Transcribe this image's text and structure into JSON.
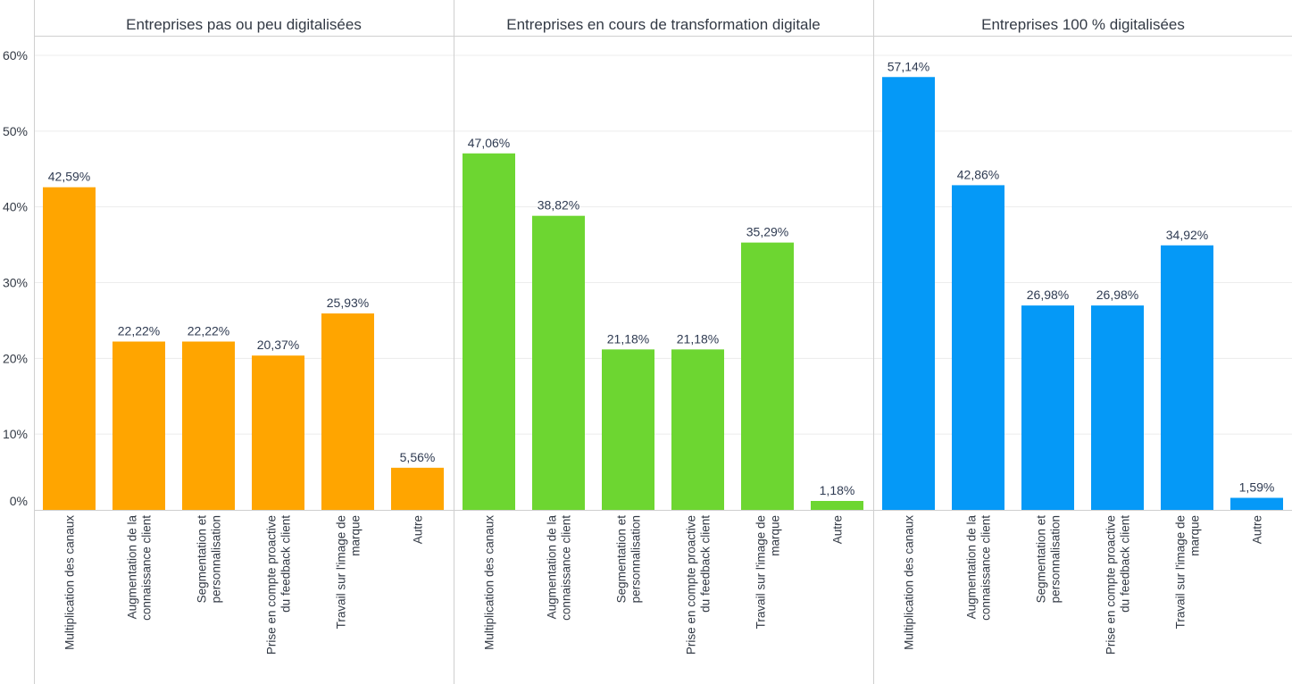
{
  "chart_data": {
    "type": "bar",
    "title": "",
    "xlabel": "",
    "ylabel": "",
    "ylim": [
      0,
      60
    ],
    "y_ticks": [
      "0%",
      "10%",
      "20%",
      "30%",
      "40%",
      "50%",
      "60%"
    ],
    "y_tick_values": [
      0,
      10,
      20,
      30,
      40,
      50,
      60
    ],
    "grid": true,
    "categories": [
      "Multiplication des canaux",
      "Augmentation de la connaissance client",
      "Segmentation et personnalisation",
      "Prise en compte proactive du feedback client",
      "Travail sur l'image de marque",
      "Autre"
    ],
    "category_lines": [
      [
        "Multiplication des canaux"
      ],
      [
        "Augmentation de la",
        "connaissance client"
      ],
      [
        "Segmentation et",
        "personnalisation"
      ],
      [
        "Prise en compte proactive",
        "du feedback client"
      ],
      [
        "Travail sur l'image de",
        "marque"
      ],
      [
        "Autre"
      ]
    ],
    "series": [
      {
        "name": "Entreprises pas ou peu digitalisées",
        "color": "#FFA500",
        "values": [
          42.59,
          22.22,
          22.22,
          20.37,
          25.93,
          5.56
        ],
        "labels": [
          "42,59%",
          "22,22%",
          "22,22%",
          "20,37%",
          "25,93%",
          "5,56%"
        ]
      },
      {
        "name": "Entreprises en cours de transformation digitale",
        "color": "#6DD631",
        "values": [
          47.06,
          38.82,
          21.18,
          21.18,
          35.29,
          1.18
        ],
        "labels": [
          "47,06%",
          "38,82%",
          "21,18%",
          "21,18%",
          "35,29%",
          "1,18%"
        ]
      },
      {
        "name": "Entreprises 100 % digitalisées",
        "color": "#0599F7",
        "values": [
          57.14,
          42.86,
          26.98,
          26.98,
          34.92,
          1.59
        ],
        "labels": [
          "57,14%",
          "42,86%",
          "26,98%",
          "26,98%",
          "34,92%",
          "1,59%"
        ]
      }
    ]
  }
}
